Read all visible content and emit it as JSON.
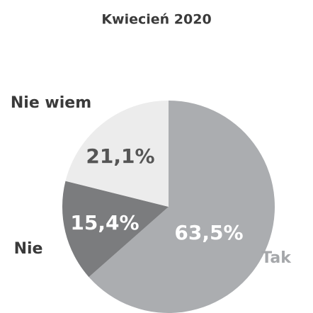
{
  "chart_data": {
    "type": "pie",
    "title": "Kwiecień 2020",
    "categories": [
      "Tak",
      "Nie",
      "Nie wiem"
    ],
    "values": [
      63.5,
      15.4,
      21.1
    ],
    "value_labels": [
      "63,5%",
      "15,4%",
      "21,1%"
    ],
    "colors": [
      "#abadb0",
      "#7b7c7e",
      "#ececec"
    ]
  }
}
